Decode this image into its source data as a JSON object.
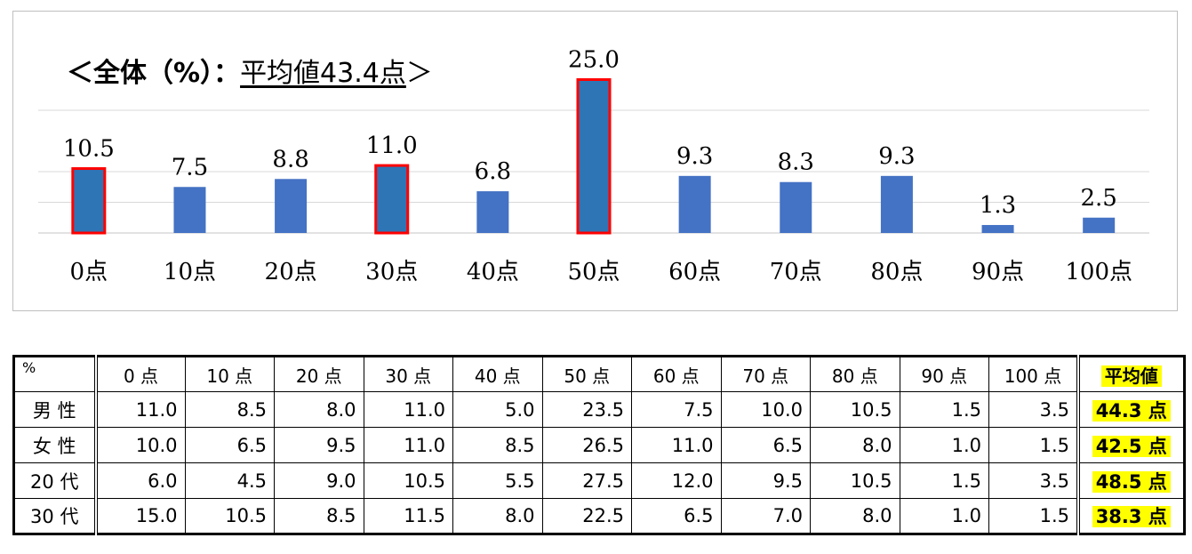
{
  "chart_data": {
    "type": "bar",
    "title_prefix": "＜全体（%）：",
    "title_avg": "平均値43.4点",
    "title_suffix": "＞",
    "categories": [
      "0点",
      "10点",
      "20点",
      "30点",
      "40点",
      "50点",
      "60点",
      "70点",
      "80点",
      "90点",
      "100点"
    ],
    "values": [
      10.5,
      7.5,
      8.8,
      11.0,
      6.8,
      25.0,
      9.3,
      8.3,
      9.3,
      1.3,
      2.5
    ],
    "value_labels": [
      "10.5",
      "7.5",
      "8.8",
      "11.0",
      "6.8",
      "25.0",
      "9.3",
      "8.3",
      "9.3",
      "1.3",
      "2.5"
    ],
    "highlighted": [
      true,
      false,
      false,
      true,
      false,
      true,
      false,
      false,
      false,
      false,
      false
    ],
    "ylim": [
      0,
      20
    ],
    "gridlines": [
      0,
      5,
      10,
      20
    ],
    "bar_color": "#4472c4",
    "highlight_bar_color": "#2e75b6",
    "highlight_border_color": "#ff0000",
    "grid": true
  },
  "table": {
    "corner": "%",
    "columns": [
      "0 点",
      "10 点",
      "20 点",
      "30 点",
      "40 点",
      "50 点",
      "60 点",
      "70 点",
      "80 点",
      "90 点",
      "100 点"
    ],
    "avg_header": "平均値",
    "rows": [
      {
        "label": "男 性",
        "values": [
          "11.0",
          "8.5",
          "8.0",
          "11.0",
          "5.0",
          "23.5",
          "7.5",
          "10.0",
          "10.5",
          "1.5",
          "3.5"
        ],
        "avg": "44.3 点"
      },
      {
        "label": "女 性",
        "values": [
          "10.0",
          "6.5",
          "9.5",
          "11.0",
          "8.5",
          "26.5",
          "11.0",
          "6.5",
          "8.0",
          "1.0",
          "1.5"
        ],
        "avg": "42.5 点"
      },
      {
        "label": "20 代",
        "values": [
          "6.0",
          "4.5",
          "9.0",
          "10.5",
          "5.5",
          "27.5",
          "12.0",
          "9.5",
          "10.5",
          "1.5",
          "3.5"
        ],
        "avg": "48.5 点"
      },
      {
        "label": "30 代",
        "values": [
          "15.0",
          "10.5",
          "8.5",
          "11.5",
          "8.0",
          "22.5",
          "6.5",
          "7.0",
          "8.0",
          "1.0",
          "1.5"
        ],
        "avg": "38.3 点"
      }
    ],
    "highlight_color": "#ffff00"
  }
}
